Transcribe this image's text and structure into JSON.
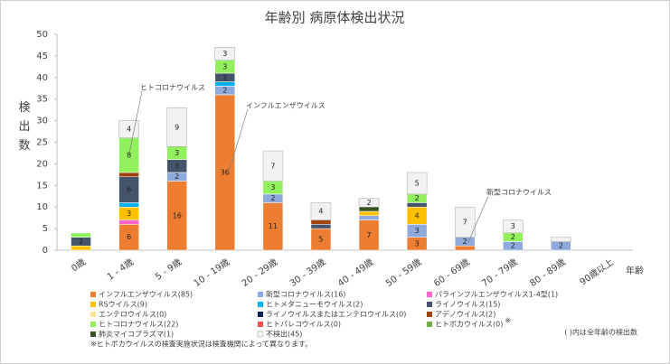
{
  "chart_data": {
    "type": "bar",
    "stacked": true,
    "title": "年齢別 病原体検出状況",
    "y_label": "検出数",
    "x_label": "年齢",
    "categories": [
      "0歳",
      "1 - 4歳",
      "5 - 9歳",
      "10 - 19歳",
      "20 - 29歳",
      "30 - 39歳",
      "40 - 49歳",
      "50 - 59歳",
      "60 - 69歳",
      "70 - 79歳",
      "80 - 89歳",
      "90歳以上"
    ],
    "series": [
      {
        "name": "インフルエンザウイルス(85)",
        "color": "#ED7D31",
        "values": [
          0,
          6,
          16,
          36,
          11,
          5,
          7,
          3,
          1,
          0,
          0,
          0
        ]
      },
      {
        "name": "新型コロナウイルス(16)",
        "color": "#8EA9DB",
        "values": [
          0,
          0,
          2,
          2,
          2,
          0,
          1,
          3,
          2,
          2,
          2,
          0
        ]
      },
      {
        "name": "パラインフルエンザウイルス1-4型(1)",
        "color": "#FF66CC",
        "values": [
          0,
          1,
          0,
          0,
          0,
          0,
          0,
          0,
          0,
          0,
          0,
          0
        ]
      },
      {
        "name": "RSウイルス(9)",
        "color": "#FFC000",
        "values": [
          1,
          3,
          0,
          0,
          0,
          0,
          1,
          4,
          0,
          0,
          0,
          0
        ]
      },
      {
        "name": "ヒトメタニューモウイルス(2)",
        "color": "#00B0F0",
        "values": [
          0,
          1,
          0,
          1,
          0,
          0,
          0,
          0,
          0,
          0,
          0,
          0
        ]
      },
      {
        "name": "ライノウイルス(15)",
        "color": "#44546A",
        "values": [
          2,
          6,
          3,
          2,
          0,
          1,
          0,
          1,
          0,
          0,
          0,
          0
        ]
      },
      {
        "name": "エンテロウイルス(0)",
        "color": "#FFE699",
        "values": [
          0,
          0,
          0,
          0,
          0,
          0,
          0,
          0,
          0,
          0,
          0,
          0
        ]
      },
      {
        "name": "ライノウイルスまたはエンテロウイルス(0)",
        "color": "#002060",
        "values": [
          0,
          0,
          0,
          0,
          0,
          0,
          0,
          0,
          0,
          0,
          0,
          0
        ]
      },
      {
        "name": "アデノウイルス(2)",
        "color": "#A0430D",
        "values": [
          0,
          1,
          0,
          0,
          0,
          1,
          0,
          0,
          0,
          0,
          0,
          0
        ]
      },
      {
        "name": "ヒトコロナウイルス(22)",
        "color": "#92F05C",
        "values": [
          1,
          8,
          3,
          3,
          3,
          0,
          0,
          2,
          0,
          2,
          0,
          0
        ]
      },
      {
        "name": "ヒトパレコウイルス(0)",
        "color": "#FF5050",
        "values": [
          0,
          0,
          0,
          0,
          0,
          0,
          0,
          0,
          0,
          0,
          0,
          0
        ]
      },
      {
        "name": "ヒトボカウイルス(0)",
        "color": "#70AD47",
        "values": [
          0,
          0,
          0,
          0,
          0,
          0,
          0,
          0,
          0,
          0,
          0,
          0
        ]
      },
      {
        "name": "肺炎マイコプラズマ(1)",
        "color": "#375623",
        "values": [
          0,
          0,
          0,
          0,
          0,
          0,
          1,
          0,
          0,
          0,
          0,
          0
        ]
      },
      {
        "name": "不検出(45)",
        "color": "#F2F2F2",
        "values": [
          0,
          4,
          9,
          3,
          7,
          4,
          2,
          5,
          7,
          3,
          1,
          0
        ]
      }
    ],
    "ylim": [
      0,
      50
    ],
    "yticks": [
      0,
      5,
      10,
      15,
      20,
      25,
      30,
      35,
      40,
      45,
      50
    ],
    "annotations": [
      "ヒトコロナウイルス",
      "インフルエンザウイルス",
      "新型コロナウイルス"
    ],
    "boca_mark": "※",
    "notes": [
      "※ヒトボカウイルスの検査実施状況は検査機関によって異なります。",
      "( )内は全年齢の検出数"
    ]
  }
}
